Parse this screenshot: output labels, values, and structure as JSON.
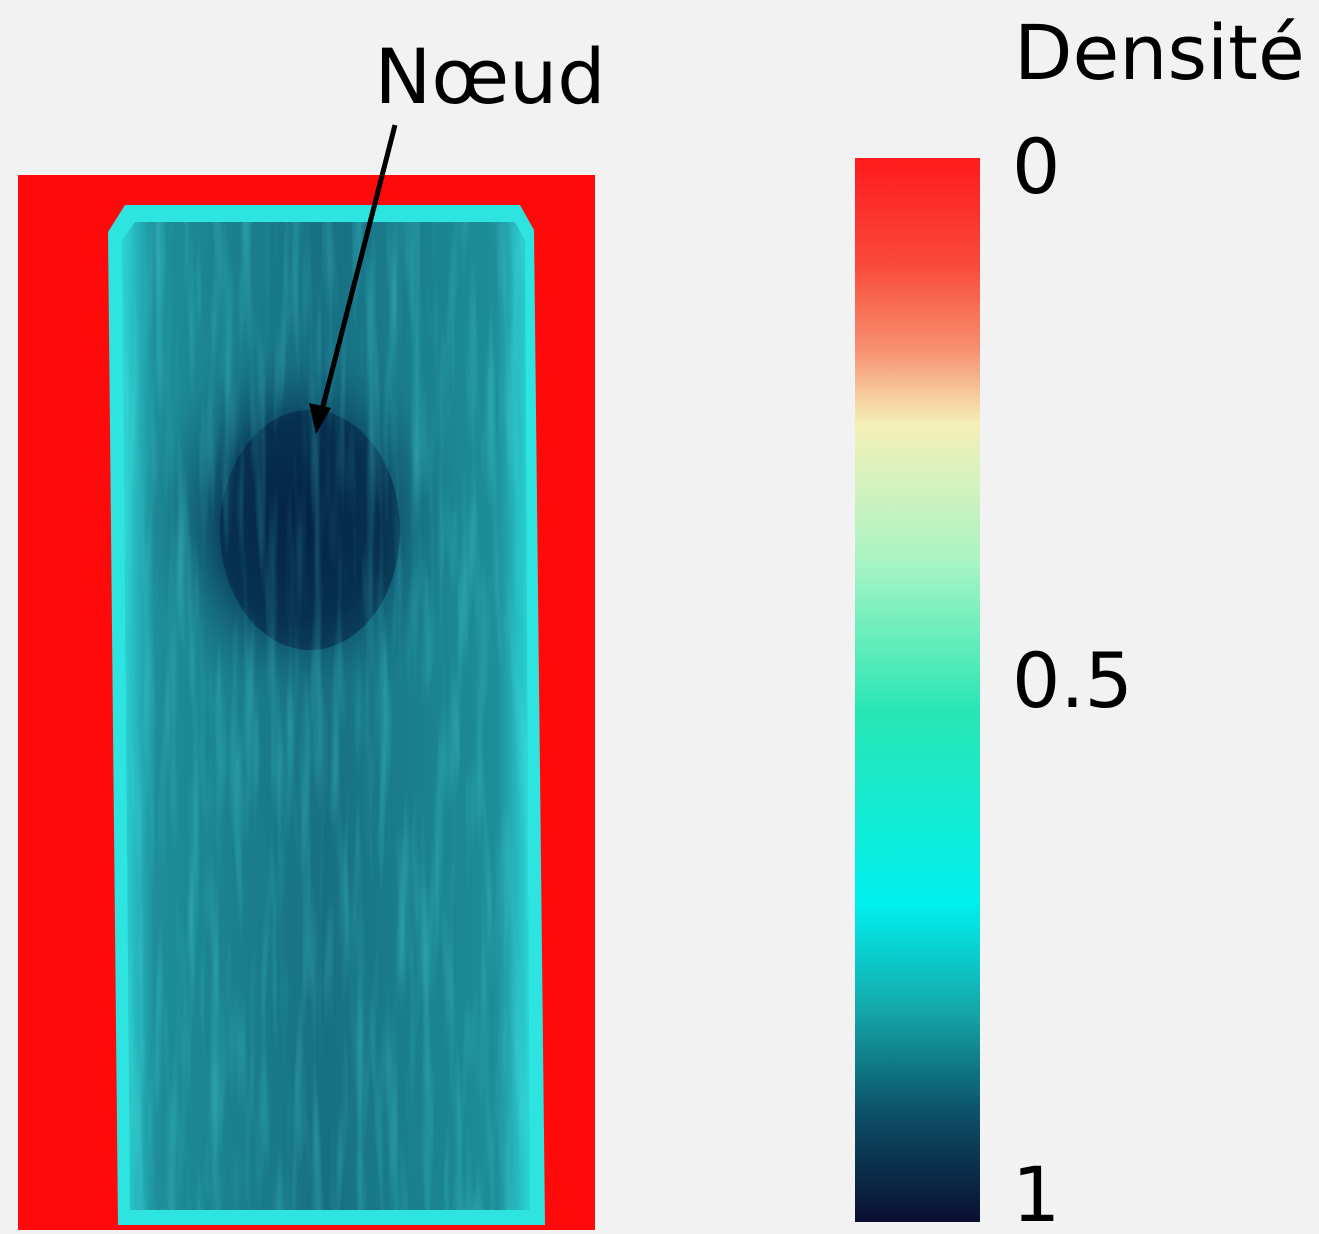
{
  "annotation": "Nœud",
  "colorbar": {
    "title": "Densité",
    "ticks": [
      0,
      0.5,
      1
    ]
  }
}
